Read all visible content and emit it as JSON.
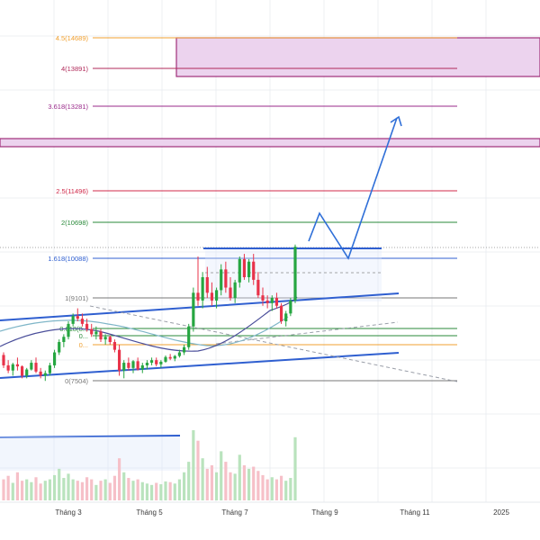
{
  "colors": {
    "background": "#ffffff",
    "grid": "#eceff3",
    "bull": "#26a641",
    "bear": "#e8334a",
    "trendline": "#2f5fd0",
    "projection": "#2f6fd8",
    "zone_fill": "#ecd3ee",
    "zone_border": "#a0307a",
    "ma_dark": "#4a4e9a",
    "ma_light": "#7fb6c8",
    "dashed_down": "#9a9ea8",
    "volume_up": "#b9e3bd",
    "volume_down": "#f6c0c8"
  },
  "chart_data": {
    "type": "candlestick",
    "x_axis_ticks": [
      "Tháng 3",
      "Tháng 5",
      "Tháng 7",
      "Tháng 9",
      "Tháng 11",
      "2025"
    ],
    "fibonacci_levels": [
      {
        "label": "4.5(14689)",
        "ratio": 4.5,
        "price": 14689,
        "color": "#f0a030"
      },
      {
        "label": "4(13891)",
        "ratio": 4,
        "price": 13891,
        "color": "#b02a5a"
      },
      {
        "label": "3.618(13281)",
        "ratio": 3.618,
        "price": 13281,
        "color": "#9a2a8a"
      },
      {
        "label": "2.5(11496)",
        "ratio": 2.5,
        "price": 11496,
        "color": "#d02a4a"
      },
      {
        "label": "2(10698)",
        "ratio": 2,
        "price": 10698,
        "color": "#2a8a3a"
      },
      {
        "label": "1.618(10088)",
        "ratio": 1.618,
        "price": 10088,
        "color": "#2f5fd0"
      },
      {
        "label": "1(9101)",
        "ratio": 1,
        "price": 9101,
        "color": "#777777"
      },
      {
        "label": "0.618(8...",
        "ratio": 0.618,
        "price": null,
        "color": "#2a8a3a"
      },
      {
        "label": "0...",
        "ratio": 0.5,
        "price": null,
        "color": "#2a8a3a"
      },
      {
        "label": "0...",
        "ratio": 0.382,
        "price": null,
        "color": "#f0a030"
      },
      {
        "label": "0(7504)",
        "ratio": 0,
        "price": 7504,
        "color": "#777777"
      }
    ],
    "resistance_zones": [
      {
        "name": "upper-zone",
        "price_low": 13891,
        "price_high": 14689
      },
      {
        "name": "middle-zone",
        "price_low": 12600,
        "price_high": 12760
      }
    ],
    "candles": [
      [
        8000,
        8050,
        7750,
        7800
      ],
      [
        7800,
        7900,
        7650,
        7700
      ],
      [
        7700,
        7850,
        7600,
        7820
      ],
      [
        7820,
        7950,
        7700,
        7780
      ],
      [
        7780,
        7800,
        7550,
        7600
      ],
      [
        7600,
        7750,
        7550,
        7720
      ],
      [
        7720,
        7900,
        7700,
        7850
      ],
      [
        7850,
        7950,
        7650,
        7680
      ],
      [
        7680,
        7750,
        7550,
        7600
      ],
      [
        7600,
        7700,
        7500,
        7650
      ],
      [
        7650,
        7850,
        7600,
        7800
      ],
      [
        7800,
        8100,
        7750,
        8050
      ],
      [
        8050,
        8300,
        8000,
        8250
      ],
      [
        8250,
        8400,
        8150,
        8350
      ],
      [
        8350,
        8650,
        8300,
        8600
      ],
      [
        8600,
        8800,
        8550,
        8750
      ],
      [
        8750,
        8900,
        8650,
        8700
      ],
      [
        8700,
        8800,
        8550,
        8600
      ],
      [
        8600,
        8700,
        8450,
        8500
      ],
      [
        8500,
        8600,
        8350,
        8400
      ],
      [
        8400,
        8550,
        8300,
        8450
      ],
      [
        8450,
        8500,
        8250,
        8300
      ],
      [
        8300,
        8400,
        8200,
        8350
      ],
      [
        8350,
        8380,
        8200,
        8250
      ],
      [
        8250,
        8300,
        8050,
        8100
      ],
      [
        8100,
        8200,
        7600,
        7700
      ],
      [
        7700,
        7900,
        7550,
        7850
      ],
      [
        7850,
        7950,
        7700,
        7750
      ],
      [
        7750,
        7900,
        7650,
        7880
      ],
      [
        7880,
        7950,
        7700,
        7720
      ],
      [
        7720,
        7850,
        7650,
        7800
      ],
      [
        7800,
        7900,
        7720,
        7850
      ],
      [
        7850,
        7950,
        7800,
        7900
      ],
      [
        7900,
        7950,
        7780,
        7820
      ],
      [
        7820,
        7900,
        7750,
        7870
      ],
      [
        7870,
        7990,
        7850,
        7960
      ],
      [
        7960,
        8020,
        7900,
        7930
      ],
      [
        7930,
        8000,
        7880,
        7980
      ],
      [
        7980,
        8100,
        7950,
        8050
      ],
      [
        8050,
        8200,
        8000,
        8150
      ],
      [
        8150,
        8600,
        8100,
        8550
      ],
      [
        8550,
        9300,
        8450,
        9200
      ],
      [
        9200,
        9900,
        8950,
        9050
      ],
      [
        9050,
        9600,
        8900,
        9500
      ],
      [
        9500,
        9700,
        9100,
        9200
      ],
      [
        9200,
        9400,
        8950,
        9050
      ],
      [
        9050,
        9300,
        8900,
        9250
      ],
      [
        9250,
        9750,
        9150,
        9650
      ],
      [
        9650,
        9800,
        9200,
        9300
      ],
      [
        9300,
        9500,
        9050,
        9100
      ],
      [
        9100,
        9450,
        9000,
        9400
      ],
      [
        9400,
        9900,
        9300,
        9850
      ],
      [
        9850,
        9950,
        9450,
        9500
      ],
      [
        9500,
        9850,
        9400,
        9800
      ],
      [
        9800,
        9950,
        9350,
        9450
      ],
      [
        9450,
        9600,
        9100,
        9150
      ],
      [
        9150,
        9300,
        8950,
        9050
      ],
      [
        9050,
        9150,
        8900,
        9000
      ],
      [
        9000,
        9150,
        8850,
        9100
      ],
      [
        9100,
        9200,
        8900,
        8950
      ],
      [
        8950,
        9000,
        8600,
        8650
      ],
      [
        8650,
        8850,
        8550,
        8800
      ],
      [
        8800,
        9100,
        8750,
        9050
      ],
      [
        9050,
        10130,
        9000,
        10088
      ]
    ],
    "volumes": [
      0.3,
      0.35,
      0.25,
      0.4,
      0.28,
      0.3,
      0.26,
      0.33,
      0.24,
      0.28,
      0.3,
      0.36,
      0.45,
      0.32,
      0.38,
      0.3,
      0.28,
      0.26,
      0.33,
      0.3,
      0.22,
      0.28,
      0.3,
      0.25,
      0.35,
      0.6,
      0.4,
      0.32,
      0.28,
      0.3,
      0.26,
      0.24,
      0.22,
      0.25,
      0.23,
      0.27,
      0.26,
      0.24,
      0.3,
      0.4,
      0.55,
      1.0,
      0.85,
      0.6,
      0.45,
      0.5,
      0.4,
      0.7,
      0.55,
      0.4,
      0.38,
      0.65,
      0.5,
      0.45,
      0.48,
      0.42,
      0.36,
      0.3,
      0.33,
      0.3,
      0.35,
      0.28,
      0.32,
      0.9
    ]
  }
}
